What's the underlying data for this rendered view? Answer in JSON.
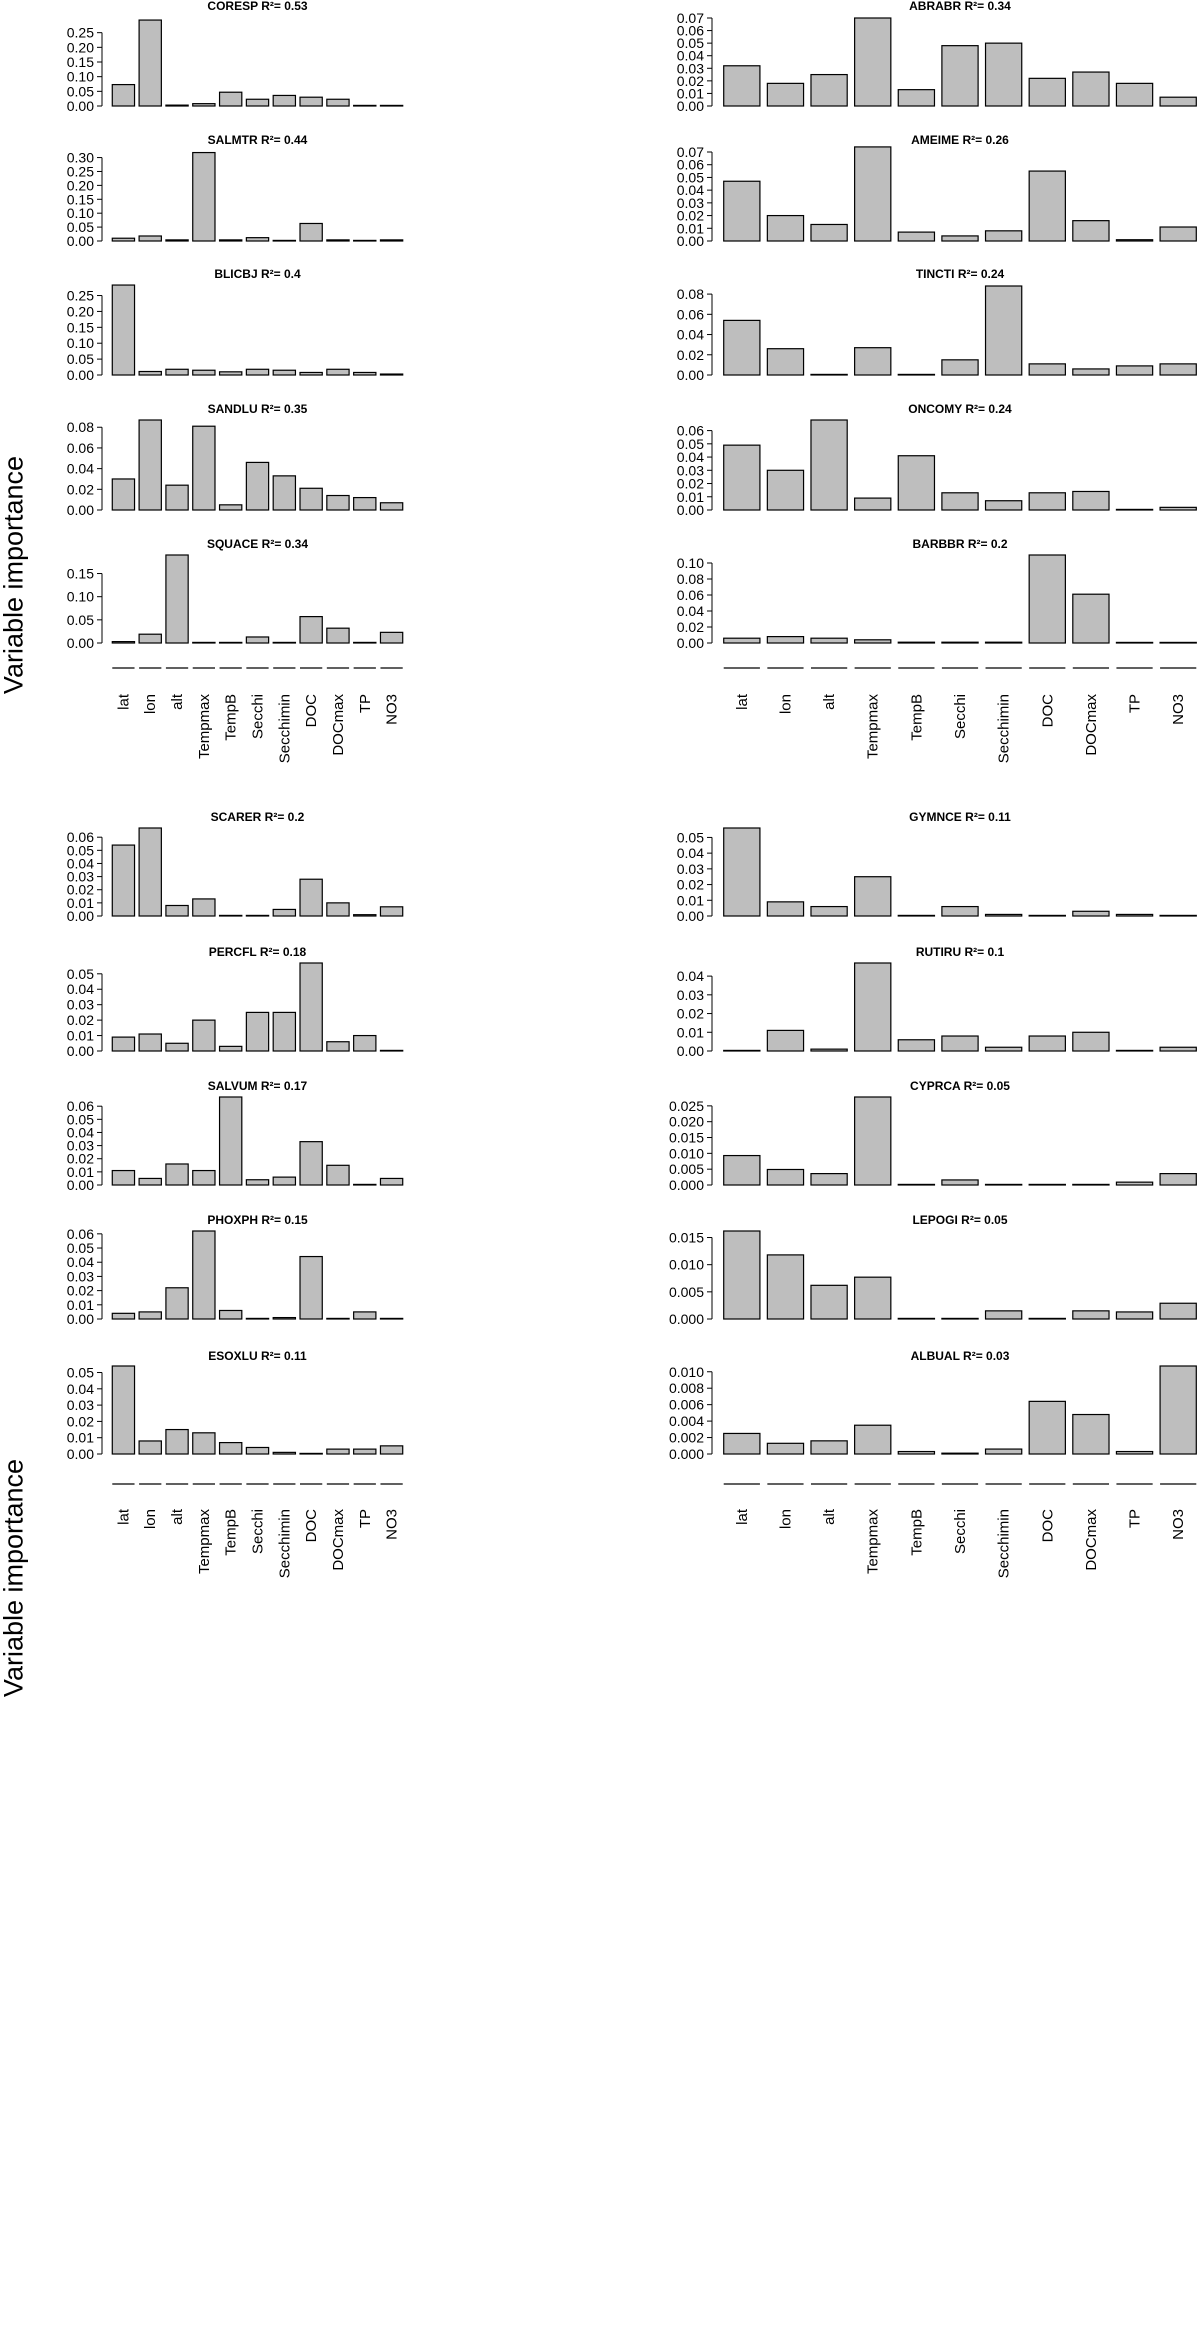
{
  "figure": {
    "ylabel": "Variable importance",
    "variables": [
      "lat",
      "lon",
      "alt",
      "Tempmax",
      "TempB",
      "Secchi",
      "Secchimin",
      "DOC",
      "DOCmax",
      "TP",
      "NO3"
    ]
  },
  "chart_data": [
    {
      "type": "bar",
      "title": "CORESP",
      "r2": "R²= 0.53",
      "categories": [
        "lat",
        "lon",
        "alt",
        "Tempmax",
        "TempB",
        "Secchi",
        "Secchimin",
        "DOC",
        "DOCmax",
        "TP",
        "NO3"
      ],
      "values": [
        0.073,
        0.293,
        0.003,
        0.008,
        0.047,
        0.023,
        0.036,
        0.03,
        0.023,
        0.001,
        0.001
      ],
      "ylim": [
        0,
        0.3
      ],
      "yticks": [
        "0.00",
        "0.05",
        "0.10",
        "0.15",
        "0.20",
        "0.25"
      ]
    },
    {
      "type": "bar",
      "title": "ABRABR",
      "r2": "R²= 0.34",
      "categories": [
        "lat",
        "lon",
        "alt",
        "Tempmax",
        "TempB",
        "Secchi",
        "Secchimin",
        "DOC",
        "DOCmax",
        "TP",
        "NO3"
      ],
      "values": [
        0.032,
        0.018,
        0.025,
        0.07,
        0.013,
        0.048,
        0.05,
        0.022,
        0.027,
        0.018,
        0.007
      ],
      "ylim": [
        0,
        0.07
      ],
      "yticks": [
        "0.00",
        "0.01",
        "0.02",
        "0.03",
        "0.04",
        "0.05",
        "0.06",
        "0.07"
      ]
    },
    {
      "type": "bar",
      "title": "SALMTR",
      "r2": "R²= 0.44",
      "categories": [
        "lat",
        "lon",
        "alt",
        "Tempmax",
        "TempB",
        "Secchi",
        "Secchimin",
        "DOC",
        "DOCmax",
        "TP",
        "NO3"
      ],
      "values": [
        0.01,
        0.018,
        0.004,
        0.318,
        0.004,
        0.012,
        0.001,
        0.063,
        0.004,
        0.001,
        0.004
      ],
      "ylim": [
        0,
        0.32
      ],
      "yticks": [
        "0.00",
        "0.05",
        "0.10",
        "0.15",
        "0.20",
        "0.25",
        "0.30"
      ]
    },
    {
      "type": "bar",
      "title": "AMEIME",
      "r2": "R²= 0.26",
      "categories": [
        "lat",
        "lon",
        "alt",
        "Tempmax",
        "TempB",
        "Secchi",
        "Secchimin",
        "DOC",
        "DOCmax",
        "TP",
        "NO3"
      ],
      "values": [
        0.047,
        0.02,
        0.013,
        0.074,
        0.007,
        0.004,
        0.008,
        0.055,
        0.016,
        0.001,
        0.011
      ],
      "ylim": [
        0,
        0.07
      ],
      "yticks": [
        "0.00",
        "0.01",
        "0.02",
        "0.03",
        "0.04",
        "0.05",
        "0.06",
        "0.07"
      ]
    },
    {
      "type": "bar",
      "title": "BLICBJ",
      "r2": "R²= 0.4",
      "categories": [
        "lat",
        "lon",
        "alt",
        "Tempmax",
        "TempB",
        "Secchi",
        "Secchimin",
        "DOC",
        "DOCmax",
        "TP",
        "NO3"
      ],
      "values": [
        0.283,
        0.011,
        0.018,
        0.015,
        0.01,
        0.018,
        0.015,
        0.008,
        0.018,
        0.008,
        0.003
      ],
      "ylim": [
        0,
        0.28
      ],
      "yticks": [
        "0.00",
        "0.05",
        "0.10",
        "0.15",
        "0.20",
        "0.25"
      ]
    },
    {
      "type": "bar",
      "title": "TINCTI",
      "r2": "R²= 0.24",
      "categories": [
        "lat",
        "lon",
        "alt",
        "Tempmax",
        "TempB",
        "Secchi",
        "Secchimin",
        "DOC",
        "DOCmax",
        "TP",
        "NO3"
      ],
      "values": [
        0.054,
        0.026,
        0.0,
        0.027,
        0.0,
        0.015,
        0.088,
        0.011,
        0.006,
        0.009,
        0.011
      ],
      "ylim": [
        0,
        0.088
      ],
      "yticks": [
        "0.00",
        "0.02",
        "0.04",
        "0.06",
        "0.08"
      ]
    },
    {
      "type": "bar",
      "title": "SANDLU",
      "r2": "R²= 0.35",
      "categories": [
        "lat",
        "lon",
        "alt",
        "Tempmax",
        "TempB",
        "Secchi",
        "Secchimin",
        "DOC",
        "DOCmax",
        "TP",
        "NO3"
      ],
      "values": [
        0.03,
        0.087,
        0.024,
        0.081,
        0.005,
        0.046,
        0.033,
        0.021,
        0.014,
        0.012,
        0.007
      ],
      "ylim": [
        0,
        0.087
      ],
      "yticks": [
        "0.00",
        "0.02",
        "0.04",
        "0.06",
        "0.08"
      ]
    },
    {
      "type": "bar",
      "title": "ONCOMY",
      "r2": "R²= 0.24",
      "categories": [
        "lat",
        "lon",
        "alt",
        "Tempmax",
        "TempB",
        "Secchi",
        "Secchimin",
        "DOC",
        "DOCmax",
        "TP",
        "NO3"
      ],
      "values": [
        0.049,
        0.03,
        0.068,
        0.009,
        0.041,
        0.013,
        0.007,
        0.013,
        0.014,
        0.0,
        0.002
      ],
      "ylim": [
        0,
        0.068
      ],
      "yticks": [
        "0.00",
        "0.01",
        "0.02",
        "0.03",
        "0.04",
        "0.05",
        "0.06"
      ]
    },
    {
      "type": "bar",
      "title": "SQUACE",
      "r2": "R²= 0.34",
      "categories": [
        "lat",
        "lon",
        "alt",
        "Tempmax",
        "TempB",
        "Secchi",
        "Secchimin",
        "DOC",
        "DOCmax",
        "TP",
        "NO3"
      ],
      "values": [
        0.003,
        0.019,
        0.19,
        0.001,
        0.001,
        0.013,
        0.001,
        0.057,
        0.032,
        0.0,
        0.023
      ],
      "ylim": [
        0,
        0.19
      ],
      "yticks": [
        "0.00",
        "0.05",
        "0.10",
        "0.15"
      ]
    },
    {
      "type": "bar",
      "title": "BARBBR",
      "r2": "R²= 0.2",
      "categories": [
        "lat",
        "lon",
        "alt",
        "Tempmax",
        "TempB",
        "Secchi",
        "Secchimin",
        "DOC",
        "DOCmax",
        "TP",
        "NO3"
      ],
      "values": [
        0.006,
        0.008,
        0.006,
        0.004,
        0.001,
        0.001,
        0.001,
        0.11,
        0.061,
        0.0,
        0.0
      ],
      "ylim": [
        0,
        0.11
      ],
      "yticks": [
        "0.00",
        "0.02",
        "0.04",
        "0.06",
        "0.08",
        "0.10"
      ]
    },
    {
      "type": "bar",
      "title": "SCARER",
      "r2": "R²= 0.2",
      "categories": [
        "lat",
        "lon",
        "alt",
        "Tempmax",
        "TempB",
        "Secchi",
        "Secchimin",
        "DOC",
        "DOCmax",
        "TP",
        "NO3"
      ],
      "values": [
        0.054,
        0.067,
        0.008,
        0.013,
        0.0,
        0.0,
        0.005,
        0.028,
        0.01,
        0.001,
        0.007
      ],
      "ylim": [
        0,
        0.067
      ],
      "yticks": [
        "0.00",
        "0.01",
        "0.02",
        "0.03",
        "0.04",
        "0.05",
        "0.06"
      ]
    },
    {
      "type": "bar",
      "title": "GYMNCE",
      "r2": "R²= 0.11",
      "categories": [
        "lat",
        "lon",
        "alt",
        "Tempmax",
        "TempB",
        "Secchi",
        "Secchimin",
        "DOC",
        "DOCmax",
        "TP",
        "NO3"
      ],
      "values": [
        0.056,
        0.009,
        0.006,
        0.025,
        0.0,
        0.006,
        0.001,
        0.0,
        0.003,
        0.001,
        0.0
      ],
      "ylim": [
        0,
        0.056
      ],
      "yticks": [
        "0.00",
        "0.01",
        "0.02",
        "0.03",
        "0.04",
        "0.05"
      ]
    },
    {
      "type": "bar",
      "title": "PERCFL",
      "r2": "R²= 0.18",
      "categories": [
        "lat",
        "lon",
        "alt",
        "Tempmax",
        "TempB",
        "Secchi",
        "Secchimin",
        "DOC",
        "DOCmax",
        "TP",
        "NO3"
      ],
      "values": [
        0.009,
        0.011,
        0.005,
        0.02,
        0.003,
        0.025,
        0.025,
        0.057,
        0.006,
        0.01,
        0.0
      ],
      "ylim": [
        0,
        0.057
      ],
      "yticks": [
        "0.00",
        "0.01",
        "0.02",
        "0.03",
        "0.04",
        "0.05"
      ]
    },
    {
      "type": "bar",
      "title": "RUTIRU",
      "r2": "R²= 0.1",
      "categories": [
        "lat",
        "lon",
        "alt",
        "Tempmax",
        "TempB",
        "Secchi",
        "Secchimin",
        "DOC",
        "DOCmax",
        "TP",
        "NO3"
      ],
      "values": [
        0.0,
        0.011,
        0.001,
        0.047,
        0.006,
        0.008,
        0.002,
        0.008,
        0.01,
        0.0,
        0.002
      ],
      "ylim": [
        0,
        0.047
      ],
      "yticks": [
        "0.00",
        "0.01",
        "0.02",
        "0.03",
        "0.04"
      ]
    },
    {
      "type": "bar",
      "title": "SALVUM",
      "r2": "R²= 0.17",
      "categories": [
        "lat",
        "lon",
        "alt",
        "Tempmax",
        "TempB",
        "Secchi",
        "Secchimin",
        "DOC",
        "DOCmax",
        "TP",
        "NO3"
      ],
      "values": [
        0.011,
        0.005,
        0.016,
        0.011,
        0.067,
        0.004,
        0.006,
        0.033,
        0.015,
        0.0,
        0.005
      ],
      "ylim": [
        0,
        0.067
      ],
      "yticks": [
        "0.00",
        "0.01",
        "0.02",
        "0.03",
        "0.04",
        "0.05",
        "0.06"
      ]
    },
    {
      "type": "bar",
      "title": "CYPRCA",
      "r2": "R²= 0.05",
      "categories": [
        "lat",
        "lon",
        "alt",
        "Tempmax",
        "TempB",
        "Secchi",
        "Secchimin",
        "DOC",
        "DOCmax",
        "TP",
        "NO3"
      ],
      "values": [
        0.0093,
        0.0049,
        0.0036,
        0.0278,
        0.0,
        0.0016,
        0.0,
        0.0,
        0.0,
        0.0009,
        0.0036
      ],
      "ylim": [
        0,
        0.0278
      ],
      "yticks": [
        "0.000",
        "0.005",
        "0.010",
        "0.015",
        "0.020",
        "0.025"
      ]
    },
    {
      "type": "bar",
      "title": "PHOXPH",
      "r2": "R²= 0.15",
      "categories": [
        "lat",
        "lon",
        "alt",
        "Tempmax",
        "TempB",
        "Secchi",
        "Secchimin",
        "DOC",
        "DOCmax",
        "TP",
        "NO3"
      ],
      "values": [
        0.004,
        0.005,
        0.022,
        0.062,
        0.006,
        0.0,
        0.001,
        0.044,
        0.0,
        0.005,
        0.0
      ],
      "ylim": [
        0,
        0.062
      ],
      "yticks": [
        "0.00",
        "0.01",
        "0.02",
        "0.03",
        "0.04",
        "0.05",
        "0.06"
      ]
    },
    {
      "type": "bar",
      "title": "LEPOGI",
      "r2": "R²= 0.05",
      "categories": [
        "lat",
        "lon",
        "alt",
        "Tempmax",
        "TempB",
        "Secchi",
        "Secchimin",
        "DOC",
        "DOCmax",
        "TP",
        "NO3"
      ],
      "values": [
        0.0162,
        0.0118,
        0.0062,
        0.0077,
        0.0,
        0.0,
        0.0015,
        0.0,
        0.0015,
        0.0013,
        0.0029
      ],
      "ylim": [
        0,
        0.0162
      ],
      "yticks": [
        "0.000",
        "0.005",
        "0.010",
        "0.015"
      ]
    },
    {
      "type": "bar",
      "title": "ESOXLU",
      "r2": "R²= 0.11",
      "categories": [
        "lat",
        "lon",
        "alt",
        "Tempmax",
        "TempB",
        "Secchi",
        "Secchimin",
        "DOC",
        "DOCmax",
        "TP",
        "NO3"
      ],
      "values": [
        0.054,
        0.008,
        0.015,
        0.013,
        0.007,
        0.004,
        0.001,
        0.0,
        0.003,
        0.003,
        0.005
      ],
      "ylim": [
        0,
        0.054
      ],
      "yticks": [
        "0.00",
        "0.01",
        "0.02",
        "0.03",
        "0.04",
        "0.05"
      ]
    },
    {
      "type": "bar",
      "title": "ALBUAL",
      "r2": "R²= 0.03",
      "categories": [
        "lat",
        "lon",
        "alt",
        "Tempmax",
        "TempB",
        "Secchi",
        "Secchimin",
        "DOC",
        "DOCmax",
        "TP",
        "NO3"
      ],
      "values": [
        0.0025,
        0.0013,
        0.0016,
        0.0035,
        0.0003,
        0.0001,
        0.0006,
        0.0064,
        0.0048,
        0.0003,
        0.0107
      ],
      "ylim": [
        0,
        0.0107
      ],
      "yticks": [
        "0.000",
        "0.002",
        "0.004",
        "0.006",
        "0.008",
        "0.010"
      ]
    }
  ]
}
